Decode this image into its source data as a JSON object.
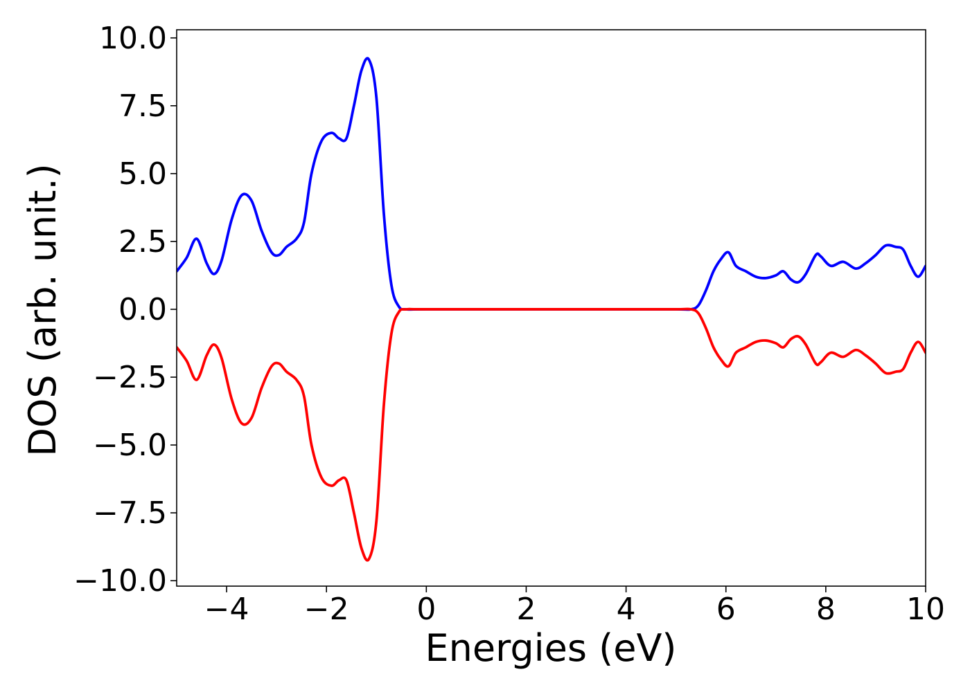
{
  "chart_data": {
    "type": "line",
    "title": "",
    "xlabel": "Energies (eV)",
    "ylabel": "DOS (arb. unit.)",
    "xlim": [
      -5,
      10
    ],
    "ylim": [
      -10.2,
      10.3
    ],
    "grid": false,
    "legend": "none",
    "x_ticks": [
      -4,
      -2,
      0,
      2,
      4,
      6,
      8,
      10
    ],
    "x_tick_labels": [
      "−4",
      "−2",
      "0",
      "2",
      "4",
      "6",
      "8",
      "10"
    ],
    "y_ticks": [
      10,
      7.5,
      5,
      2.5,
      0,
      -2.5,
      -5,
      -7.5,
      -10
    ],
    "y_tick_labels": [
      "10.0",
      "7.5",
      "5.0",
      "2.5",
      "0.0",
      "−2.5",
      "−5.0",
      "−7.5",
      "−10.0"
    ],
    "series": [
      {
        "color": "#0000ff",
        "x": [
          -5.0,
          -4.8,
          -4.6,
          -4.4,
          -4.25,
          -4.1,
          -3.9,
          -3.7,
          -3.5,
          -3.3,
          -3.1,
          -2.95,
          -2.8,
          -2.6,
          -2.45,
          -2.3,
          -2.1,
          -1.9,
          -1.75,
          -1.6,
          -1.45,
          -1.3,
          -1.15,
          -1.0,
          -0.85,
          -0.7,
          -0.55,
          -0.4,
          0.0,
          2.0,
          4.0,
          5.0,
          5.3,
          5.45,
          5.6,
          5.75,
          5.9,
          6.05,
          6.2,
          6.4,
          6.6,
          6.8,
          7.0,
          7.15,
          7.3,
          7.45,
          7.6,
          7.8,
          7.9,
          8.1,
          8.35,
          8.6,
          8.8,
          9.0,
          9.2,
          9.4,
          9.55,
          9.7,
          9.85,
          10.0
        ],
        "y": [
          1.4,
          1.9,
          2.6,
          1.7,
          1.3,
          1.8,
          3.3,
          4.2,
          4.0,
          2.9,
          2.1,
          2.0,
          2.3,
          2.6,
          3.2,
          5.0,
          6.2,
          6.5,
          6.3,
          6.3,
          7.5,
          8.8,
          9.2,
          7.8,
          3.5,
          0.9,
          0.1,
          0.0,
          0.0,
          0.0,
          0.0,
          0.0,
          0.0,
          0.15,
          0.7,
          1.4,
          1.85,
          2.1,
          1.6,
          1.4,
          1.2,
          1.15,
          1.25,
          1.4,
          1.1,
          1.0,
          1.3,
          2.0,
          1.95,
          1.6,
          1.75,
          1.5,
          1.7,
          2.0,
          2.35,
          2.3,
          2.2,
          1.6,
          1.2,
          1.6
        ]
      },
      {
        "color": "#ff0000",
        "x": [
          -5.0,
          -4.8,
          -4.6,
          -4.4,
          -4.25,
          -4.1,
          -3.9,
          -3.7,
          -3.5,
          -3.3,
          -3.1,
          -2.95,
          -2.8,
          -2.6,
          -2.45,
          -2.3,
          -2.1,
          -1.9,
          -1.75,
          -1.6,
          -1.45,
          -1.3,
          -1.15,
          -1.0,
          -0.85,
          -0.7,
          -0.55,
          -0.4,
          0.0,
          2.0,
          4.0,
          5.0,
          5.3,
          5.45,
          5.6,
          5.75,
          5.9,
          6.05,
          6.2,
          6.4,
          6.6,
          6.8,
          7.0,
          7.15,
          7.3,
          7.45,
          7.6,
          7.8,
          7.9,
          8.1,
          8.35,
          8.6,
          8.8,
          9.0,
          9.2,
          9.4,
          9.55,
          9.7,
          9.85,
          10.0
        ],
        "y": [
          -1.4,
          -1.9,
          -2.6,
          -1.7,
          -1.3,
          -1.8,
          -3.3,
          -4.2,
          -4.0,
          -2.9,
          -2.1,
          -2.0,
          -2.3,
          -2.6,
          -3.2,
          -5.0,
          -6.2,
          -6.5,
          -6.3,
          -6.3,
          -7.5,
          -8.8,
          -9.2,
          -7.8,
          -3.5,
          -0.9,
          -0.1,
          0.0,
          0.0,
          0.0,
          0.0,
          0.0,
          0.0,
          -0.15,
          -0.7,
          -1.4,
          -1.85,
          -2.1,
          -1.6,
          -1.4,
          -1.2,
          -1.15,
          -1.25,
          -1.4,
          -1.1,
          -1.0,
          -1.3,
          -2.0,
          -1.95,
          -1.6,
          -1.75,
          -1.5,
          -1.7,
          -2.0,
          -2.35,
          -2.3,
          -2.2,
          -1.6,
          -1.2,
          -1.6
        ]
      }
    ]
  }
}
